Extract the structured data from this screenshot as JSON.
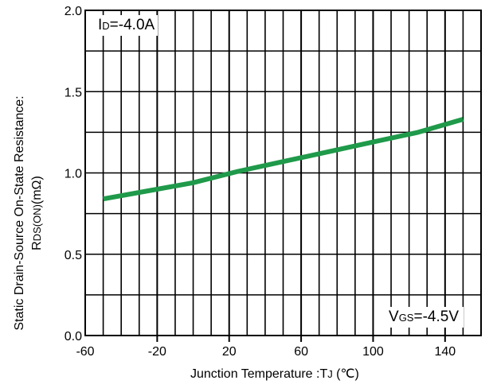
{
  "chart_data": {
    "type": "line",
    "xlabel": "Junction Temperature :T",
    "xlabel_sub": "J",
    "xlabel_unit": " (℃)",
    "ylabel_line1": "Static Drain-Source On-State Resistance:",
    "ylabel_main": "R",
    "ylabel_sub": "DS(ON)",
    "ylabel_unit": "(mΩ)",
    "xlim": [
      -60,
      160
    ],
    "ylim": [
      0,
      2.0
    ],
    "xticks": [
      -60,
      -20,
      20,
      60,
      100,
      140
    ],
    "xtick_labels": [
      "-60",
      "-20",
      "20",
      "60",
      "100",
      "140"
    ],
    "yticks": [
      0,
      0.5,
      1.0,
      1.5,
      2.0
    ],
    "ytick_labels": [
      "0.0",
      "0.5",
      "1.0",
      "1.5",
      "2.0"
    ],
    "grid": true,
    "annotations": {
      "id_main": "I",
      "id_sub": "D",
      "id_value": "=-4.0A",
      "vgs_main": "V",
      "vgs_sub": "GS",
      "vgs_value": "=-4.5V"
    },
    "series": [
      {
        "color": "#1f9a4a",
        "x": [
          -50,
          -25,
          0,
          25,
          50,
          75,
          100,
          125,
          150
        ],
        "y": [
          0.84,
          0.89,
          0.94,
          1.01,
          1.07,
          1.13,
          1.19,
          1.25,
          1.33
        ]
      }
    ]
  }
}
